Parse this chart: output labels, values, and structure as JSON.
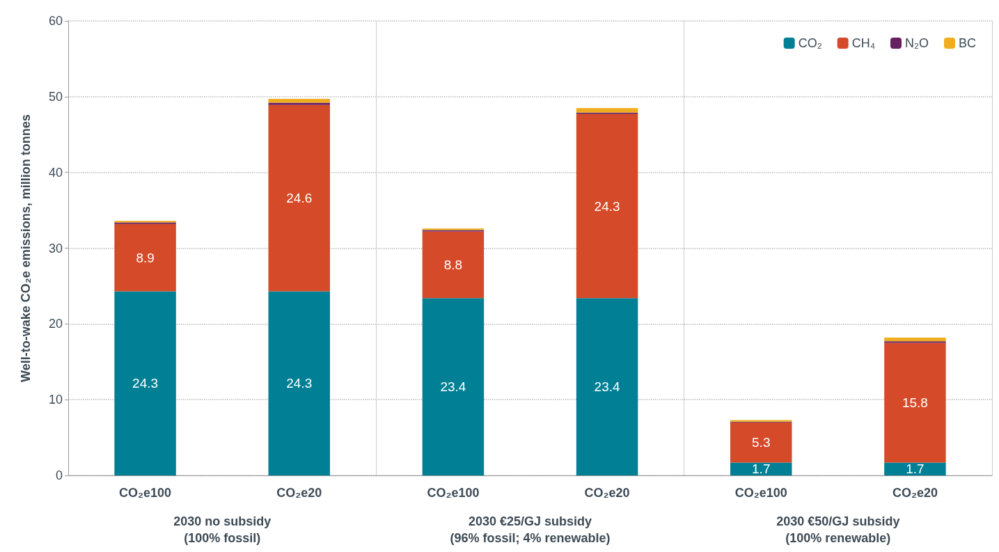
{
  "chart_data": {
    "type": "bar",
    "stacked": true,
    "ylabel": "Well-to-wake CO₂e emissions, million tonnes",
    "categories": [
      "CO₂e100",
      "CO₂e20",
      "CO₂e100",
      "CO₂e20",
      "CO₂e100",
      "CO₂e20"
    ],
    "annotations": [
      "2030 no subsidy\n(100% fossil)",
      "2030 €25/GJ subsidy\n(96% fossil; 4% renewable)",
      "2030 €50/GJ subsidy\n(100% renewable)"
    ],
    "series": [
      {
        "name": "CO₂",
        "color": "#007f95",
        "values": [
          24.3,
          24.3,
          23.4,
          23.4,
          1.7,
          1.7
        ],
        "value_labels": [
          "24.3",
          "24.3",
          "23.4",
          "23.4",
          "1.7",
          "1.7"
        ]
      },
      {
        "name": "CH₄",
        "color": "#d54a28",
        "values": [
          8.9,
          24.6,
          8.8,
          24.3,
          5.3,
          15.8
        ],
        "value_labels": [
          "8.9",
          "24.6",
          "8.8",
          "24.3",
          "5.3",
          "15.8"
        ]
      },
      {
        "name": "N₂O",
        "color": "#672161",
        "values": [
          0.2,
          0.3,
          0.2,
          0.2,
          0.1,
          0.2
        ]
      },
      {
        "name": "BC",
        "color": "#f0ad1f",
        "values": [
          0.2,
          0.5,
          0.2,
          0.6,
          0.2,
          0.5
        ]
      }
    ],
    "ylim": [
      0,
      60
    ],
    "yticks": [
      0,
      10,
      20,
      30,
      40,
      50,
      60
    ],
    "grid": "y",
    "legend": "top right"
  }
}
